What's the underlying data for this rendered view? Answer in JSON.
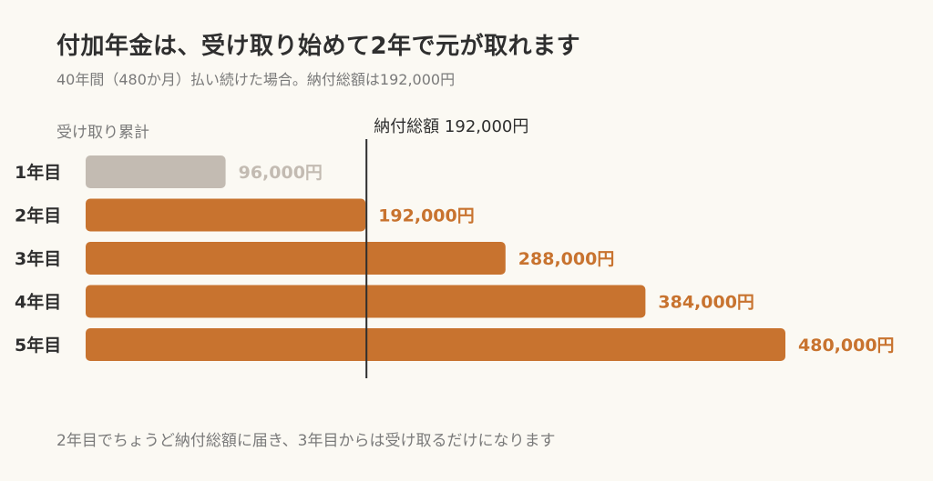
{
  "title": "付加年金は、受け取り始めて2年で元が取れます",
  "subtitle": "40年間（480か月）払い続けた場合。納付総額は192,000円",
  "footer": "2年目でちょうど納付総額に届き、3年目からは受け取るだけになります",
  "colors": {
    "first_bar": "#c3bbb2",
    "bar": "#c8732f",
    "first_label": "#c3bbb2",
    "label": "#c8732f",
    "reference_line": "#2e2e2e"
  },
  "chart_data": {
    "type": "bar",
    "orientation": "horizontal",
    "y_axis_label": "受け取り累計",
    "categories": [
      "1年目",
      "2年目",
      "3年目",
      "4年目",
      "5年目"
    ],
    "values": [
      96000,
      192000,
      288000,
      384000,
      480000
    ],
    "value_labels": [
      "96,000円",
      "192,000円",
      "288,000円",
      "384,000円",
      "480,000円"
    ],
    "reference_line": {
      "value": 192000,
      "label": "納付総額 192,000円"
    },
    "xlim": [
      0,
      480000
    ],
    "grid": false,
    "legend": "none"
  }
}
